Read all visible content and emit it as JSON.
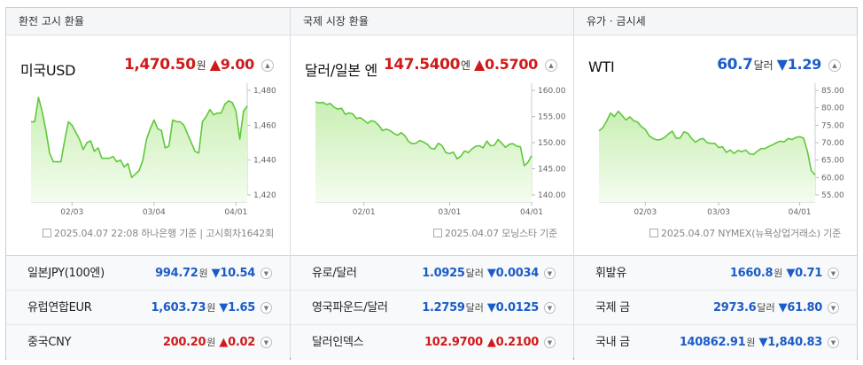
{
  "columns": [
    {
      "header": "환전 고시 환율",
      "title": "미국USD",
      "value": "1,470.50",
      "unit": "원",
      "change": "▲9.00",
      "direction": "up",
      "source": "2025.04.07 22:08 하나은행 기준 | 고시회차1642회",
      "chart_data": {
        "type": "area",
        "yticks": [
          1420,
          1440,
          1460,
          1480
        ],
        "ylim": [
          1420,
          1480
        ],
        "xticks": [
          {
            "label": "02/03",
            "idx": 11
          },
          {
            "label": "03/04",
            "idx": 33
          },
          {
            "label": "04/01",
            "idx": 55
          }
        ],
        "values": [
          1462,
          1462,
          1476,
          1468,
          1457,
          1444,
          1439,
          1439,
          1439,
          1451,
          1462,
          1460,
          1456,
          1452,
          1446,
          1450,
          1451,
          1445,
          1447,
          1441,
          1441,
          1441,
          1442,
          1439,
          1440,
          1436,
          1438,
          1430,
          1432,
          1434,
          1440,
          1452,
          1458,
          1463,
          1458,
          1457,
          1447,
          1448,
          1463,
          1462,
          1462,
          1460,
          1455,
          1450,
          1445,
          1444,
          1462,
          1465,
          1469,
          1466,
          1467,
          1467,
          1472,
          1474,
          1473,
          1468,
          1452,
          1468,
          1471
        ]
      }
    },
    {
      "header": "국제 시장 환율",
      "title": "달러/일본 엔",
      "value": "147.5400",
      "unit": "엔",
      "change": "▲0.5700",
      "direction": "up",
      "source": "2025.04.07 모닝스타 기준",
      "chart_data": {
        "type": "area",
        "yticks": [
          140,
          145,
          150,
          155,
          160
        ],
        "ylim": [
          140,
          160
        ],
        "xticks": [
          {
            "label": "02/01",
            "idx": 13
          },
          {
            "label": "03/01",
            "idx": 36
          },
          {
            "label": "04/01",
            "idx": 58
          }
        ],
        "values": [
          157.8,
          157.6,
          157.7,
          157.3,
          157.5,
          156.8,
          156.4,
          156.6,
          155.4,
          155.7,
          155.5,
          154.6,
          154.8,
          154.3,
          153.7,
          154.2,
          154.0,
          153.3,
          152.3,
          152.6,
          152.3,
          151.8,
          151.4,
          151.9,
          151.3,
          150.2,
          149.8,
          149.9,
          150.4,
          150.1,
          149.7,
          148.9,
          148.8,
          149.9,
          149.4,
          148.1,
          147.9,
          148.2,
          146.9,
          147.4,
          148.4,
          148.1,
          148.8,
          149.3,
          149.4,
          149.0,
          150.3,
          149.4,
          149.5,
          150.6,
          149.9,
          149.1,
          149.7,
          149.8,
          149.3,
          149.2,
          145.6,
          146.2,
          147.5
        ]
      }
    },
    {
      "header": "유가 · 금시세",
      "title": "WTI",
      "value": "60.7",
      "unit": "달러",
      "change": "▼1.29",
      "direction": "down",
      "source": "2025.04.07 NYMEX(뉴욕상업거래소) 기준",
      "chart_data": {
        "type": "area",
        "yticks": [
          55,
          60,
          65,
          70,
          75,
          80,
          85
        ],
        "ylim": [
          55,
          85
        ],
        "xticks": [
          {
            "label": "02/03",
            "idx": 12
          },
          {
            "label": "03/03",
            "idx": 31
          },
          {
            "label": "04/01",
            "idx": 52
          }
        ],
        "values": [
          73.4,
          74.3,
          76.2,
          78.5,
          77.5,
          79.0,
          77.8,
          76.5,
          77.4,
          76.3,
          75.9,
          74.6,
          73.8,
          72.0,
          71.2,
          70.8,
          70.9,
          71.5,
          72.5,
          73.3,
          71.3,
          71.3,
          73.1,
          72.7,
          71.2,
          70.1,
          70.9,
          71.2,
          70.0,
          69.8,
          69.8,
          68.6,
          68.8,
          67.2,
          67.9,
          66.9,
          67.8,
          67.4,
          67.9,
          66.8,
          66.6,
          67.5,
          68.3,
          68.3,
          68.9,
          69.4,
          70.0,
          70.4,
          70.2,
          71.2,
          70.9,
          71.5,
          71.7,
          71.3,
          67.5,
          62.0,
          60.7
        ]
      }
    }
  ],
  "rows": [
    [
      {
        "name": "일본JPY(100엔)",
        "value": "994.72",
        "unit": "원",
        "change": "▼10.54",
        "direction": "down"
      },
      {
        "name": "유럽연합EUR",
        "value": "1,603.73",
        "unit": "원",
        "change": "▼1.65",
        "direction": "down"
      },
      {
        "name": "중국CNY",
        "value": "200.20",
        "unit": "원",
        "change": "▲0.02",
        "direction": "up"
      }
    ],
    [
      {
        "name": "유로/달러",
        "value": "1.0925",
        "unit": "달러",
        "change": "▼0.0034",
        "direction": "down"
      },
      {
        "name": "영국파운드/달러",
        "value": "1.2759",
        "unit": "달러",
        "change": "▼0.0125",
        "direction": "down"
      },
      {
        "name": "달러인덱스",
        "value": "102.9700",
        "unit": "",
        "change": "▲0.2100",
        "direction": "up"
      }
    ],
    [
      {
        "name": "휘발유",
        "value": "1660.8",
        "unit": "원",
        "change": "▼0.71",
        "direction": "down"
      },
      {
        "name": "국제 금",
        "value": "2973.6",
        "unit": "달러",
        "change": "▼61.80",
        "direction": "down"
      },
      {
        "name": "국내 금",
        "value": "140862.91",
        "unit": "원",
        "change": "▼1,840.83",
        "direction": "down"
      }
    ]
  ],
  "colors": {
    "up": "#d01a1a",
    "down": "#1c5cc7",
    "line": "#5fc83a",
    "fill_top": "#c9efb4",
    "fill_bottom": "#f4fcef"
  },
  "icons": {
    "expand": "chevron-up-icon",
    "row_expand": "chevron-down-icon",
    "source": "document-icon"
  }
}
